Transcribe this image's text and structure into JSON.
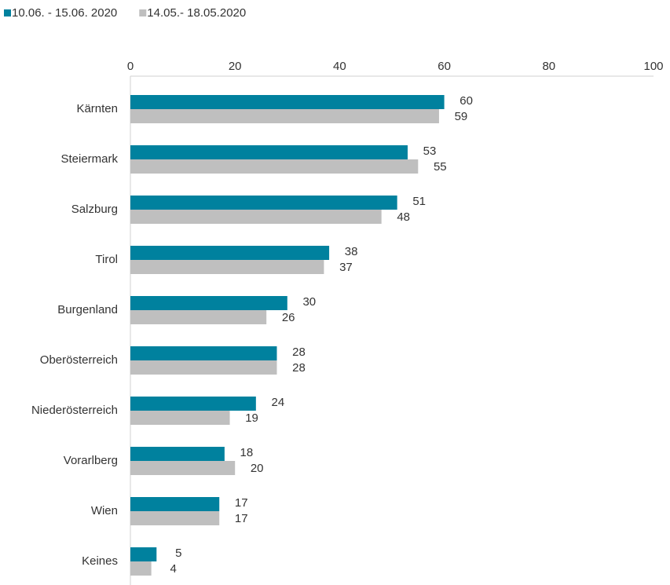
{
  "chart_data": {
    "type": "hbar",
    "categories": [
      "Kärnten",
      "Steiermark",
      "Salzburg",
      "Tirol",
      "Burgenland",
      "Oberösterreich",
      "Niederösterreich",
      "Vorarlberg",
      "Wien",
      "Keines"
    ],
    "series": [
      {
        "name": "10.06. - 15.06. 2020",
        "color": "#00819e",
        "values": [
          60,
          53,
          51,
          38,
          30,
          28,
          24,
          18,
          17,
          5
        ]
      },
      {
        "name": "14.05.- 18.05.2020",
        "color": "#bfbfbf",
        "values": [
          59,
          55,
          48,
          37,
          26,
          28,
          19,
          20,
          17,
          4
        ]
      }
    ],
    "xlim": [
      0,
      100
    ],
    "xticks": [
      0,
      20,
      40,
      60,
      80,
      100
    ],
    "grid": false,
    "legend": "top-left"
  }
}
